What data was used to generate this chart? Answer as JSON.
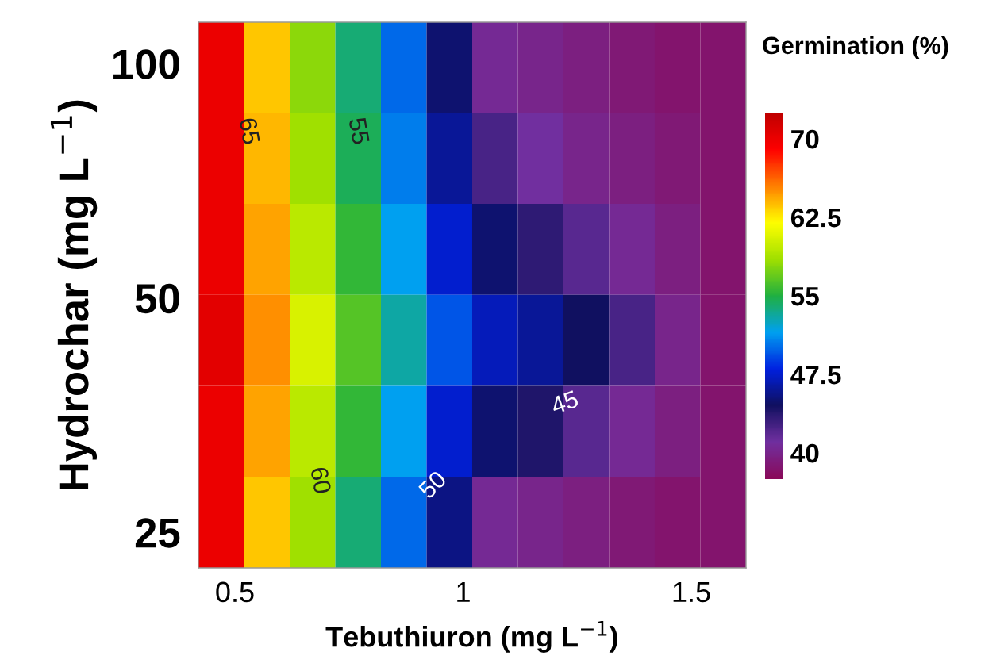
{
  "chart_data": {
    "type": "heatmap",
    "xlabel": "Tebuthiuron (mg L$^{−1}$)",
    "ylabel": "Hydrochar (mg L$^{−1}$)",
    "clabel": "Germination (%)",
    "x": [
      0.47,
      0.57,
      0.67,
      0.77,
      0.87,
      0.97,
      1.07,
      1.17,
      1.27,
      1.37,
      1.47,
      1.57
    ],
    "y": [
      98.9,
      75.6,
      57.7,
      44.1,
      33.7,
      25.7
    ],
    "cells": [
      [
        70,
        63.5,
        58,
        54,
        50,
        45,
        40.5,
        40,
        39.5,
        39,
        38.5,
        38.5
      ],
      [
        70,
        64,
        58.5,
        54.5,
        50.5,
        46,
        42.5,
        41,
        40,
        39.5,
        39,
        38.5
      ],
      [
        70,
        64.5,
        59.5,
        55.5,
        51.5,
        47.5,
        45,
        43.5,
        42,
        40.5,
        39.5,
        38.5
      ],
      [
        70.5,
        65,
        60.5,
        56.5,
        53,
        49.5,
        47,
        46,
        44.5,
        42.5,
        40,
        38.5
      ],
      [
        70,
        64.5,
        59.5,
        55.5,
        51.5,
        47.5,
        45,
        44,
        42,
        40.5,
        39.5,
        38.5
      ],
      [
        70,
        63.5,
        58.5,
        54,
        50,
        45.5,
        40.5,
        40,
        39.5,
        39,
        38.5,
        38.5
      ]
    ],
    "colors": [
      "#8a0a5a",
      "#7030a0",
      "#101060",
      "#0020e0",
      "#00a0f0",
      "#20b040",
      "#a0e000",
      "#ffff00",
      "#ff8000",
      "#ff0000",
      "#c00000"
    ],
    "clim": [
      37.5,
      72.5
    ],
    "cticks": [
      70,
      62.5,
      55,
      47.5,
      40
    ],
    "xlim": [
      0.42,
      1.62
    ],
    "ylim": [
      22.5,
      113
    ],
    "xticks": [
      0.5,
      1,
      1.5
    ],
    "yticks": [
      25,
      50,
      100
    ],
    "log": "y",
    "grid": false,
    "annotations": [
      "65",
      "55",
      "60",
      "50",
      "45"
    ]
  }
}
